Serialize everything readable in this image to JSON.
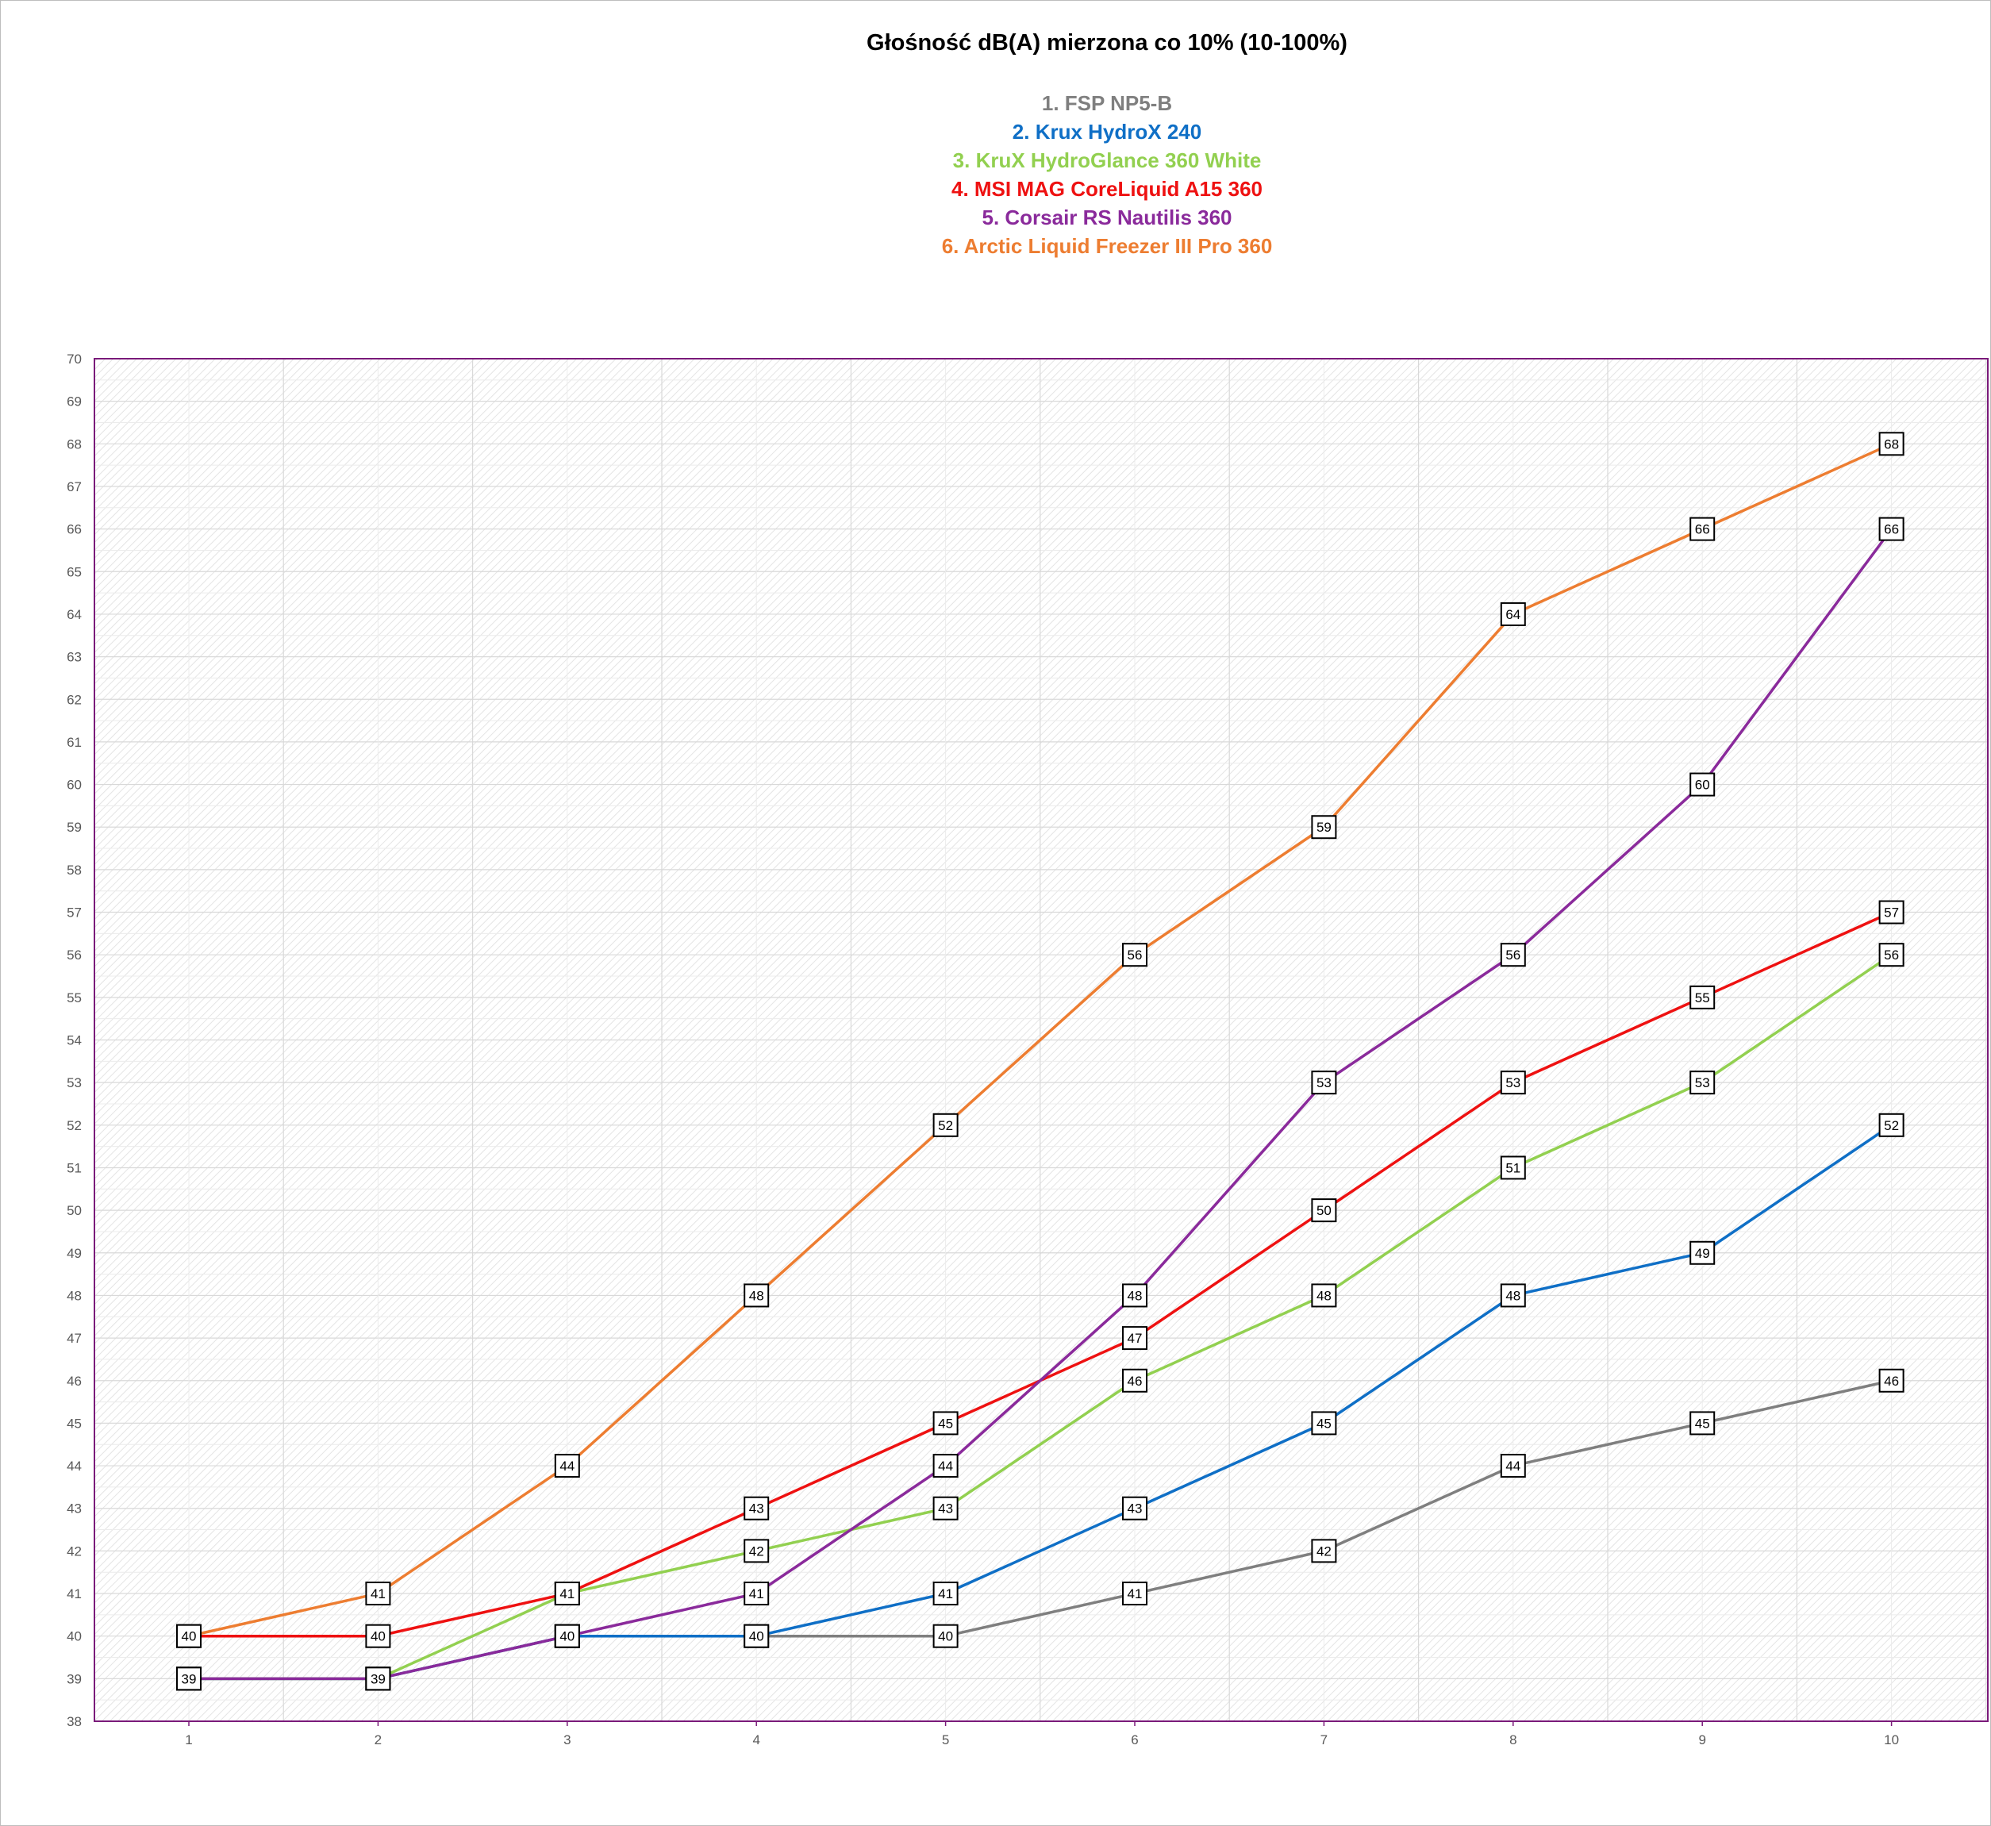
{
  "chart_data": {
    "type": "line",
    "title": "Głośność dB(A) mierzona co 10% (10-100%)",
    "xlabel": "",
    "ylabel": "",
    "x": [
      1,
      2,
      3,
      4,
      5,
      6,
      7,
      8,
      9,
      10
    ],
    "ylim": [
      38,
      70
    ],
    "grid": true,
    "legend_position": "top-center",
    "series": [
      {
        "name": "1. FSP NP5-B",
        "color": "#7f7f7f",
        "values": [
          39,
          39,
          40,
          40,
          40,
          41,
          42,
          44,
          45,
          46
        ]
      },
      {
        "name": "2. Krux HydroX 240",
        "color": "#0f6fc6",
        "values": [
          39,
          39,
          40,
          40,
          41,
          43,
          45,
          48,
          49,
          52
        ]
      },
      {
        "name": "3. KruX HydroGlance 360 White",
        "color": "#92d050",
        "values": [
          39,
          39,
          41,
          42,
          43,
          46,
          48,
          51,
          53,
          56
        ]
      },
      {
        "name": "4. MSI MAG CoreLiquid A15 360",
        "color": "#ee1111",
        "values": [
          40,
          40,
          41,
          43,
          45,
          47,
          50,
          53,
          55,
          57
        ]
      },
      {
        "name": "5. Corsair RS Nautilis 360",
        "color": "#8a2a9b",
        "values": [
          39,
          39,
          40,
          41,
          44,
          48,
          53,
          56,
          60,
          66
        ]
      },
      {
        "name": "6. Arctic Liquid Freezer III Pro 360",
        "color": "#ed7d31",
        "values": [
          40,
          41,
          44,
          48,
          52,
          56,
          59,
          64,
          66,
          68
        ]
      }
    ]
  }
}
